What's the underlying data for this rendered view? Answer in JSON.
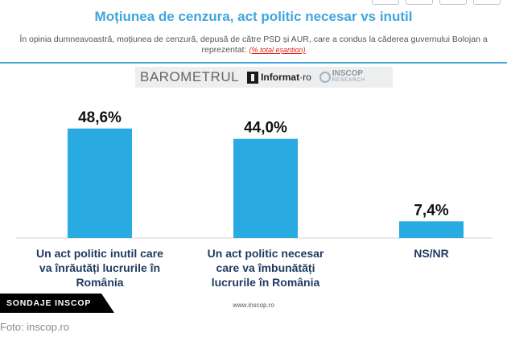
{
  "header": {
    "title": "Moțiunea de cenzura, act politic necesar vs inutil",
    "subtitle": "În opinia dumneavoastră, moțiunea de cenzură, depusă de către PSD și AUR, care a condus la căderea guvernului Bolojan a reprezentat:",
    "subtitle_note": "(% total eșantion)"
  },
  "logos": {
    "barometru": "BAROMETRUL",
    "informat": "Informat",
    "informat_suffix": "·ro",
    "inscop": "INSCOP",
    "inscop_sub": "RESEARCH"
  },
  "chart_data": {
    "type": "bar",
    "categories": [
      "Un act politic inutil care va înrăutăți lucrurile în România",
      "Un act politic necesar care va îmbunătăți lucrurile în România",
      "NS/NR"
    ],
    "category_lines": [
      [
        "Un act politic inutil care",
        "va înrăutăți lucrurile în",
        "România"
      ],
      [
        "Un act politic necesar",
        "care va îmbunătăți",
        "lucrurile în România"
      ],
      [
        "NS/NR"
      ]
    ],
    "values": [
      48.6,
      44.0,
      7.4
    ],
    "value_labels": [
      "48,6%",
      "44,0%",
      "7,4%"
    ],
    "unit": "%",
    "ylim": [
      0,
      55
    ],
    "grid": false,
    "bar_color": "#29abe2"
  },
  "footer": {
    "site": "www.inscop.ro",
    "badge": "SONDAJE INSCOP",
    "caption": "Foto: inscop.ro"
  }
}
